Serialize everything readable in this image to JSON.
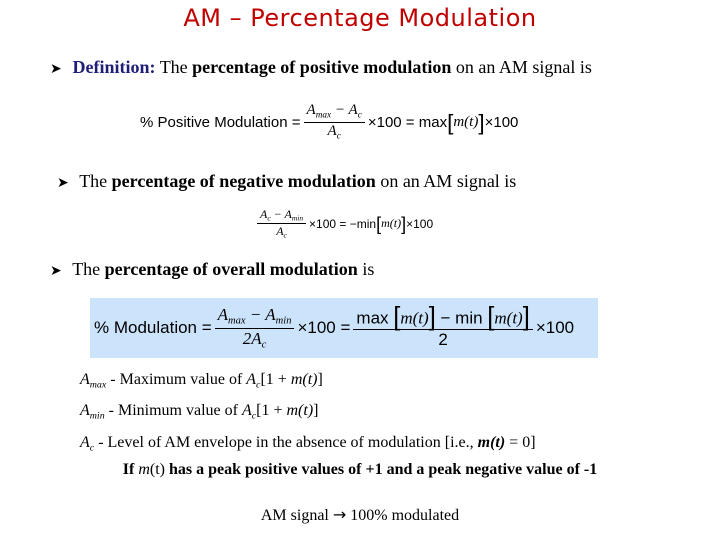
{
  "title": "AM – Percentage Modulation",
  "bullet1": {
    "label": "Definition:",
    "pre": "The",
    "bold": "percentage of positive modulation",
    "post": "on an AM signal is"
  },
  "eq1": {
    "lhs": "% Positive Modulation =",
    "num": "A",
    "num_sub": "max",
    "num_mid": " − A",
    "num_sub2": "c",
    "den": "A",
    "den_sub": "c",
    "times100": "×100 = max",
    "m": "m(t)",
    "tail": "×100"
  },
  "bullet2": {
    "pre": "The",
    "bold": "percentage of negative modulation",
    "post": "on an AM signal is"
  },
  "eq2": {
    "num": "A",
    "num_sub": "c",
    "num_mid": " − A",
    "num_sub2": "min",
    "den": "A",
    "den_sub": "c",
    "mid": "×100 = −min",
    "m": "m(t)",
    "tail": "×100"
  },
  "bullet3": {
    "pre": "The",
    "bold": "percentage of overall modulation",
    "post": "is"
  },
  "eq3": {
    "lhs": "% Modulation =",
    "num": "A",
    "num_sub": "max",
    "num_mid": " − A",
    "num_sub2": "min",
    "den": "2A",
    "den_sub": "c",
    "mid": "×100 =",
    "rnum_a": "max",
    "rnum_m": "m(t)",
    "rnum_b": "− min",
    "rnum_m2": "m(t)",
    "rden": "2",
    "tail": "×100"
  },
  "definitions": [
    {
      "sym": "A",
      "sub": "max",
      "text": " - Maximum value of ",
      "expr_a": "A",
      "expr_sub": "c",
      "expr_b": "[1 + ",
      "expr_m": "m(t)",
      "expr_c": "]"
    },
    {
      "sym": "A",
      "sub": "min",
      "text": " - Minimum value of ",
      "expr_a": "A",
      "expr_sub": "c",
      "expr_b": "[1 + ",
      "expr_m": "m(t)",
      "expr_c": "]"
    }
  ],
  "def3": {
    "sym": "A",
    "sub": "c",
    "text": " - Level of AM envelope in the absence of modulation [i.e., ",
    "m": "m(t)",
    "end": " = 0]"
  },
  "note1": {
    "a": "If",
    "m": "m",
    "t": "(t)",
    "b": "has a peak positive values of +1 and a peak negative value of -1"
  },
  "note2": {
    "a": "AM signal",
    "arrow": "→",
    "b": "100% modulated"
  }
}
